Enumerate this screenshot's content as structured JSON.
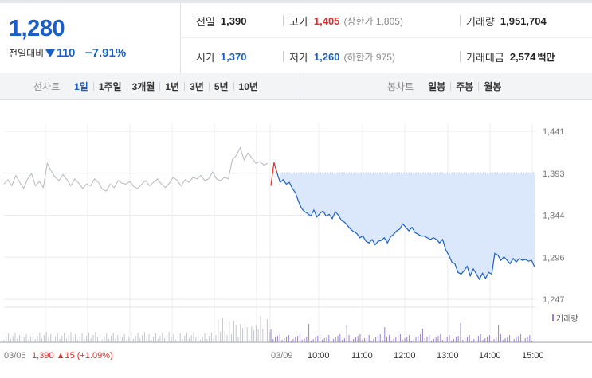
{
  "summary": {
    "price": "1,280",
    "change_label": "전일대비",
    "change_abs": "110",
    "change_pct": "−7.91%",
    "prev_close_label": "전일",
    "prev_close": "1,390",
    "high_label": "고가",
    "high": "1,405",
    "upper_limit": "(상한가 1,805)",
    "volume_label": "거래량",
    "volume": "1,951,704",
    "open_label": "시가",
    "open": "1,370",
    "low_label": "저가",
    "low": "1,260",
    "lower_limit": "(하한가 975)",
    "amount_label": "거래대금",
    "amount": "2,574",
    "amount_unit": "백만"
  },
  "tabs": {
    "line_title": "선차트",
    "line": [
      "1일",
      "1주일",
      "3개월",
      "1년",
      "3년",
      "5년",
      "10년"
    ],
    "candle_title": "봉차트",
    "candle": [
      "일봉",
      "주봉",
      "월봉"
    ]
  },
  "colors": {
    "up": "#e22b2b",
    "down": "#1a5fc8",
    "fill": "#dbe8fb",
    "volume": "#9a7fd1"
  },
  "chart_data": {
    "type": "line",
    "y_ticks": [
      "1,441",
      "1,393",
      "1,344",
      "1,296",
      "1,247"
    ],
    "ylim": [
      1247,
      1441
    ],
    "x_labels": [
      "03/06",
      "03/09",
      "10:00",
      "11:00",
      "12:00",
      "13:00",
      "14:00",
      "15:00"
    ],
    "prev_day_label": "03/06",
    "prev_day_close": "1,390",
    "prev_day_change": "▲15 (+1.09%)",
    "volume_legend": "거래량",
    "reference_price": 1393,
    "series": [
      {
        "name": "03/06",
        "values": [
          1380,
          1385,
          1378,
          1390,
          1382,
          1375,
          1386,
          1392,
          1378,
          1383,
          1376,
          1404,
          1395,
          1388,
          1384,
          1391,
          1385,
          1378,
          1386,
          1381,
          1375,
          1380,
          1378,
          1386,
          1382,
          1374,
          1372,
          1380,
          1376,
          1384,
          1381,
          1380,
          1383,
          1377,
          1375,
          1380,
          1384,
          1378,
          1382,
          1386,
          1380,
          1376,
          1381,
          1388,
          1384,
          1378,
          1385,
          1382,
          1388,
          1386,
          1390,
          1384,
          1386,
          1394,
          1386,
          1384,
          1388,
          1386,
          1408,
          1413,
          1422,
          1408,
          1416,
          1410,
          1404,
          1406,
          1402,
          1404
        ]
      },
      {
        "name": "03/09",
        "values": [
          1378,
          1405,
          1393,
          1382,
          1385,
          1380,
          1382,
          1375,
          1370,
          1360,
          1352,
          1348,
          1346,
          1343,
          1350,
          1342,
          1346,
          1349,
          1343,
          1345,
          1340,
          1348,
          1344,
          1338,
          1336,
          1332,
          1328,
          1325,
          1323,
          1318,
          1320,
          1314,
          1312,
          1316,
          1310,
          1314,
          1315,
          1318,
          1312,
          1319,
          1322,
          1326,
          1328,
          1334,
          1330,
          1326,
          1330,
          1324,
          1322,
          1320,
          1320,
          1318,
          1316,
          1318,
          1316,
          1312,
          1316,
          1304,
          1298,
          1290,
          1288,
          1278,
          1276,
          1280,
          1285,
          1274,
          1282,
          1276,
          1270,
          1277,
          1271,
          1278,
          1276,
          1300,
          1298,
          1292,
          1296,
          1292,
          1288,
          1294,
          1290,
          1294,
          1292,
          1293,
          1291,
          1292,
          1284
        ]
      }
    ]
  }
}
